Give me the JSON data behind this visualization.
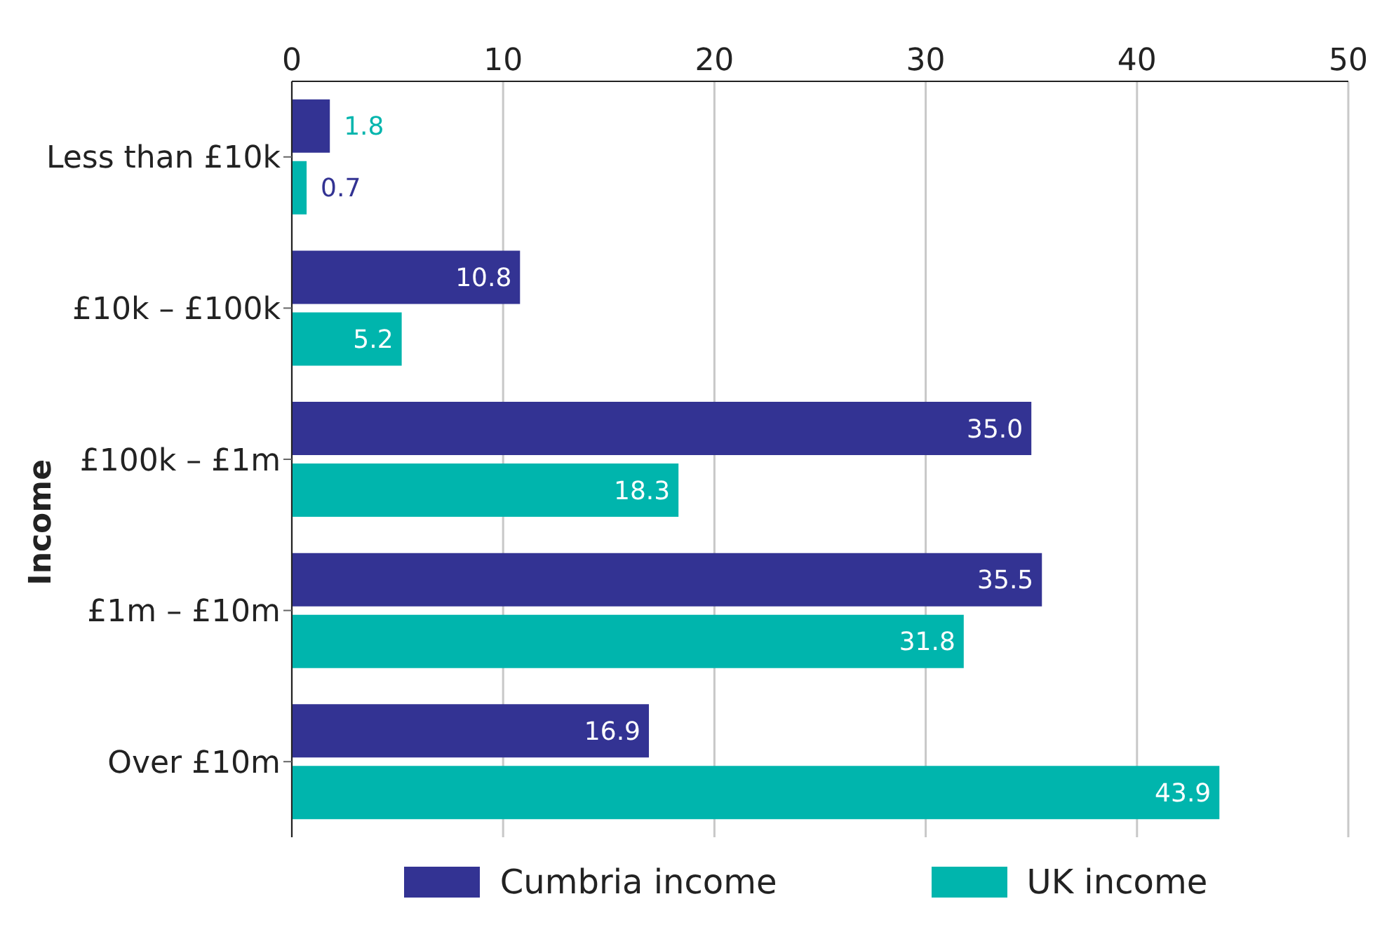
{
  "chart_data": {
    "type": "bar",
    "orientation": "horizontal",
    "ylabel": "Income",
    "categories": [
      "Less than £10k",
      "£10k – £100k",
      "£100k – £1m",
      "£1m – £10m",
      "Over £10m"
    ],
    "series": [
      {
        "name": "Cumbria income",
        "color": "#333393",
        "values": [
          1.8,
          10.8,
          35.0,
          35.5,
          16.9
        ],
        "value_labels": [
          "1.8",
          "10.8",
          "35.0",
          "35.5",
          "16.9"
        ]
      },
      {
        "name": "UK income",
        "color": "#00b5ad",
        "values": [
          0.7,
          5.2,
          18.3,
          31.8,
          43.9
        ],
        "value_labels": [
          "0.7",
          "5.2",
          "18.3",
          "31.8",
          "43.9"
        ]
      }
    ],
    "xlim": [
      0,
      50
    ],
    "xticks": [
      0,
      10,
      20,
      30,
      40,
      50
    ],
    "grid": "x",
    "legend": "bottom"
  }
}
